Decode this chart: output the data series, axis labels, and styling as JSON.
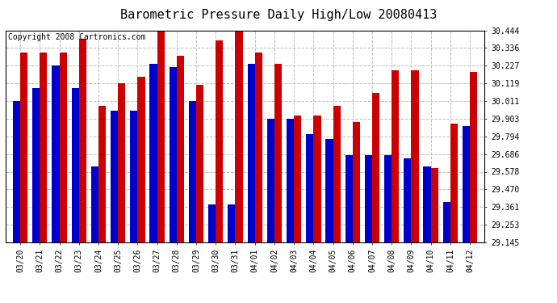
{
  "title": "Barometric Pressure Daily High/Low 20080413",
  "copyright": "Copyright 2008 Cartronics.com",
  "dates": [
    "03/20",
    "03/21",
    "03/22",
    "03/23",
    "03/24",
    "03/25",
    "03/26",
    "03/27",
    "03/28",
    "03/29",
    "03/30",
    "03/31",
    "04/01",
    "04/02",
    "04/03",
    "04/04",
    "04/05",
    "04/06",
    "04/07",
    "04/08",
    "04/09",
    "04/10",
    "04/11",
    "04/12"
  ],
  "highs": [
    30.31,
    30.31,
    30.31,
    30.39,
    29.98,
    30.12,
    30.16,
    30.45,
    30.29,
    30.11,
    30.38,
    30.45,
    30.31,
    30.24,
    29.92,
    29.92,
    29.98,
    29.88,
    30.06,
    30.2,
    30.2,
    29.6,
    29.87,
    30.19
  ],
  "lows": [
    30.01,
    30.09,
    30.23,
    30.09,
    29.61,
    29.95,
    29.95,
    30.24,
    30.22,
    30.01,
    29.38,
    29.38,
    30.24,
    29.9,
    29.9,
    29.81,
    29.78,
    29.68,
    29.68,
    29.68,
    29.66,
    29.61,
    29.39,
    29.86
  ],
  "high_color": "#cc0000",
  "low_color": "#0000cc",
  "bg_color": "#ffffff",
  "grid_color": "#c0c0c0",
  "title_fontsize": 11,
  "copyright_fontsize": 7,
  "tick_fontsize": 7,
  "ymin": 29.145,
  "ymax": 30.444,
  "yticks": [
    29.145,
    29.253,
    29.361,
    29.47,
    29.578,
    29.686,
    29.794,
    29.903,
    30.011,
    30.119,
    30.227,
    30.336,
    30.444
  ]
}
